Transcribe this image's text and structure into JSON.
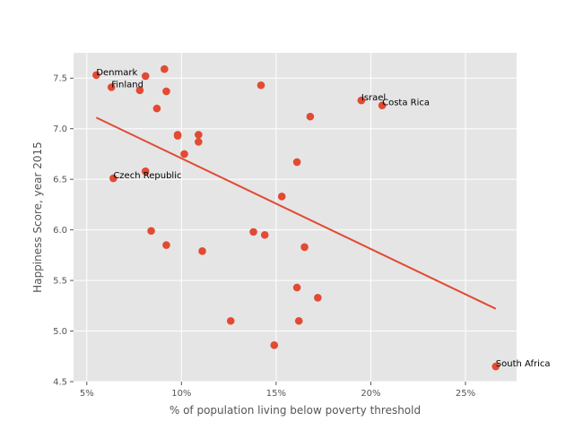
{
  "chart_data": {
    "type": "scatter",
    "xlabel": "% of population living below poverty threshold",
    "ylabel": "Happiness Score, year 2015",
    "xlim": [
      0.043,
      0.277
    ],
    "ylim": [
      4.5,
      7.75
    ],
    "xticks": [
      0.05,
      0.1,
      0.15,
      0.2,
      0.25
    ],
    "xtick_labels": [
      "5%",
      "10%",
      "15%",
      "20%",
      "25%"
    ],
    "yticks": [
      4.5,
      5.0,
      5.5,
      6.0,
      6.5,
      7.0,
      7.5
    ],
    "ytick_labels": [
      "4.5",
      "5.0",
      "5.5",
      "6.0",
      "6.5",
      "7.0",
      "7.5"
    ],
    "grid": true,
    "colors": {
      "background": "#e5e5e5",
      "grid": "#ffffff",
      "points": "#e24a33",
      "line": "#e24a33"
    },
    "points": [
      {
        "x": 0.055,
        "y": 7.53
      },
      {
        "x": 0.063,
        "y": 7.41
      },
      {
        "x": 0.064,
        "y": 6.51
      },
      {
        "x": 0.078,
        "y": 7.38
      },
      {
        "x": 0.081,
        "y": 7.52
      },
      {
        "x": 0.081,
        "y": 6.58
      },
      {
        "x": 0.084,
        "y": 5.99
      },
      {
        "x": 0.087,
        "y": 7.2
      },
      {
        "x": 0.091,
        "y": 7.59
      },
      {
        "x": 0.092,
        "y": 7.37
      },
      {
        "x": 0.092,
        "y": 5.85
      },
      {
        "x": 0.098,
        "y": 6.94
      },
      {
        "x": 0.098,
        "y": 6.93
      },
      {
        "x": 0.1015,
        "y": 6.75
      },
      {
        "x": 0.109,
        "y": 6.94
      },
      {
        "x": 0.109,
        "y": 6.87
      },
      {
        "x": 0.111,
        "y": 5.79
      },
      {
        "x": 0.126,
        "y": 5.1
      },
      {
        "x": 0.138,
        "y": 5.98
      },
      {
        "x": 0.142,
        "y": 7.43
      },
      {
        "x": 0.144,
        "y": 5.95
      },
      {
        "x": 0.149,
        "y": 4.86
      },
      {
        "x": 0.153,
        "y": 6.33
      },
      {
        "x": 0.161,
        "y": 6.67
      },
      {
        "x": 0.161,
        "y": 5.43
      },
      {
        "x": 0.162,
        "y": 5.1
      },
      {
        "x": 0.165,
        "y": 5.83
      },
      {
        "x": 0.168,
        "y": 7.12
      },
      {
        "x": 0.172,
        "y": 5.33
      },
      {
        "x": 0.195,
        "y": 7.28
      },
      {
        "x": 0.206,
        "y": 7.23
      },
      {
        "x": 0.266,
        "y": 4.65
      }
    ],
    "trend_line": {
      "x": [
        0.055,
        0.266
      ],
      "y": [
        7.11,
        5.22
      ]
    },
    "annotations": [
      {
        "text": "Denmark",
        "x": 0.055,
        "y": 7.53
      },
      {
        "text": "Finland",
        "x": 0.063,
        "y": 7.41
      },
      {
        "text": "Czech Republic",
        "x": 0.064,
        "y": 6.51
      },
      {
        "text": "Israel",
        "x": 0.195,
        "y": 7.28
      },
      {
        "text": "Costa Rica",
        "x": 0.206,
        "y": 7.23
      },
      {
        "text": "South Africa",
        "x": 0.266,
        "y": 4.65
      }
    ]
  }
}
